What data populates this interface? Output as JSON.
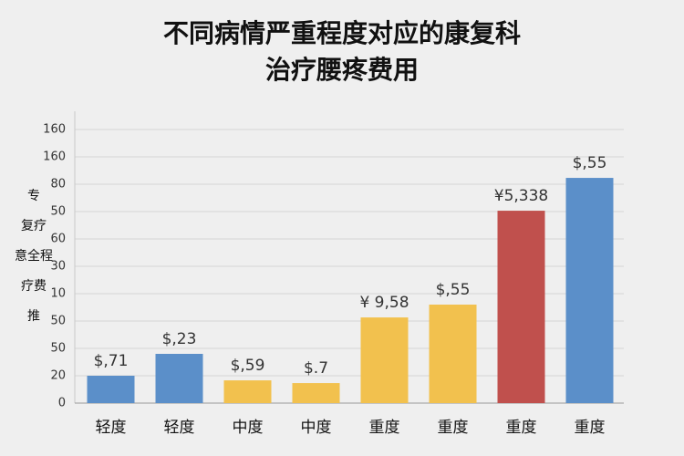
{
  "chart_data": {
    "type": "bar",
    "title_lines": [
      "不同病情严重程度对应的康复科",
      "治疗腰疼费用"
    ],
    "ylabel_lines": [
      "专",
      "复疗",
      "意全程",
      "疗费",
      "推"
    ],
    "categories": [
      "轻度",
      "轻度",
      "中度",
      "中度",
      "重度",
      "重度",
      "重度",
      "重度"
    ],
    "values": [
      16,
      28.8,
      13.3,
      11.7,
      50.1,
      57.6,
      112.5,
      131.7
    ],
    "colors": [
      "#5b8fc9",
      "#5b8fc9",
      "#f2c14e",
      "#f2c14e",
      "#f2c14e",
      "#f2c14e",
      "#c0504d",
      "#5b8fc9"
    ],
    "annotations": [
      "$,71",
      "$,23",
      "$,59",
      "$.7",
      "¥ 9,58",
      "$,55",
      "¥5,338",
      "$,55"
    ],
    "ylim": [
      0,
      160
    ],
    "yticks": [
      0,
      {
        "value": 16,
        "label": "20"
      },
      {
        "value": 32,
        "label": "50"
      },
      {
        "value": 48,
        "label": "50"
      },
      {
        "value": 64,
        "label": "10"
      },
      {
        "value": 80,
        "label": "30"
      },
      {
        "value": 96,
        "label": "60"
      },
      {
        "value": 112,
        "label": "50"
      },
      {
        "value": 128,
        "label": "80"
      },
      {
        "value": 144,
        "label": "160"
      },
      160
    ],
    "grid": true
  }
}
